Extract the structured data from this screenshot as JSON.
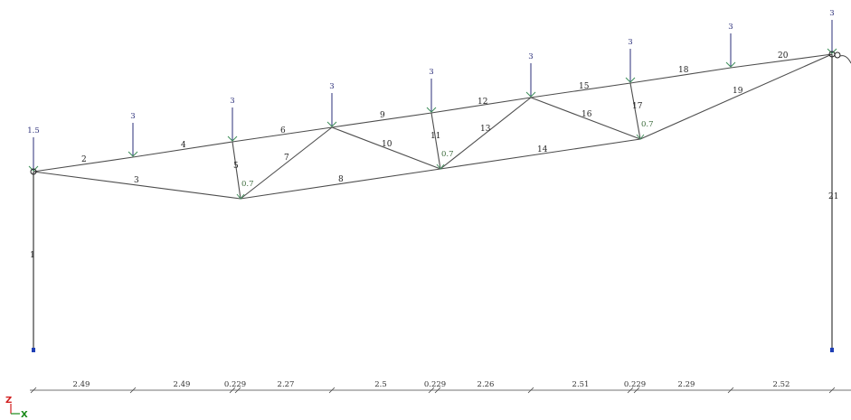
{
  "members": [
    {
      "id": "m1",
      "label": "1",
      "from": "A",
      "to": "G1"
    },
    {
      "id": "m2",
      "label": "2",
      "from": "A",
      "to": "T1"
    },
    {
      "id": "m3",
      "label": "3",
      "from": "A",
      "to": "B1"
    },
    {
      "id": "m4",
      "label": "4",
      "from": "T1",
      "to": "T2"
    },
    {
      "id": "m5",
      "label": "5",
      "from": "T2",
      "to": "B1"
    },
    {
      "id": "m6",
      "label": "6",
      "from": "T2",
      "to": "T3"
    },
    {
      "id": "m7",
      "label": "7",
      "from": "B1",
      "to": "T3"
    },
    {
      "id": "m8",
      "label": "8",
      "from": "B1",
      "to": "B2"
    },
    {
      "id": "m9",
      "label": "9",
      "from": "T3",
      "to": "T4"
    },
    {
      "id": "m10",
      "label": "10",
      "from": "T3",
      "to": "B2"
    },
    {
      "id": "m11",
      "label": "11",
      "from": "T4",
      "to": "B2"
    },
    {
      "id": "m12",
      "label": "12",
      "from": "T4",
      "to": "T5"
    },
    {
      "id": "m13",
      "label": "13",
      "from": "B2",
      "to": "T5"
    },
    {
      "id": "m14",
      "label": "14",
      "from": "B2",
      "to": "B3"
    },
    {
      "id": "m15",
      "label": "15",
      "from": "T5",
      "to": "T6"
    },
    {
      "id": "m16",
      "label": "16",
      "from": "T5",
      "to": "B3"
    },
    {
      "id": "m17",
      "label": "17",
      "from": "T6",
      "to": "B3"
    },
    {
      "id": "m18",
      "label": "18",
      "from": "T6",
      "to": "T7"
    },
    {
      "id": "m19",
      "label": "19",
      "from": "B3",
      "to": "E"
    },
    {
      "id": "m20",
      "label": "20",
      "from": "T7",
      "to": "E"
    },
    {
      "id": "m21",
      "label": "21",
      "from": "E",
      "to": "G2"
    }
  ],
  "top_loads": [
    {
      "node": "A",
      "value": "1.5"
    },
    {
      "node": "T1",
      "value": "3"
    },
    {
      "node": "T2",
      "value": "3"
    },
    {
      "node": "T3",
      "value": "3"
    },
    {
      "node": "T4",
      "value": "3"
    },
    {
      "node": "T5",
      "value": "3"
    },
    {
      "node": "T6",
      "value": "3"
    },
    {
      "node": "T7",
      "value": "3"
    },
    {
      "node": "E",
      "value": "3"
    }
  ],
  "bottom_loads": [
    {
      "node": "B1",
      "value": "0.7"
    },
    {
      "node": "B2",
      "value": "0.7"
    },
    {
      "node": "B3",
      "value": "0.7"
    }
  ],
  "dimensions": [
    "2.49",
    "2.49",
    "0.229",
    "2.27",
    "2.5",
    "0.229",
    "2.26",
    "2.51",
    "0.229",
    "2.29",
    "2.52"
  ],
  "axes": {
    "vertical": "Z",
    "horizontal": "X",
    "vertical_color": "#d22020",
    "horizontal_color": "#1a8a1a"
  },
  "colors": {
    "load": "#2b2f7a",
    "arrowhead": "#3f8f5a",
    "support": "#1f3fb5"
  }
}
